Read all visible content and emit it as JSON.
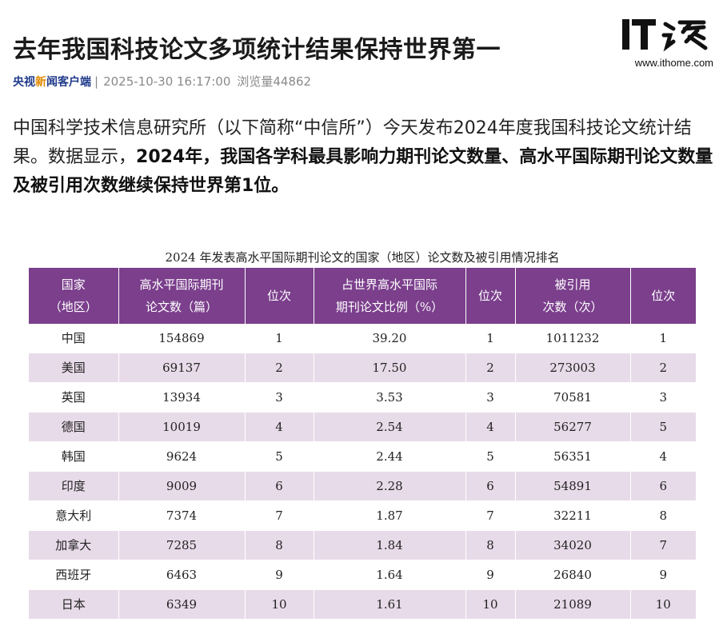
{
  "article": {
    "title": "去年我国科技论文多项统计结果保持世界第一",
    "logo_text": "IT之家",
    "logo_url": "www.ithome.com",
    "source_part1": "央视",
    "source_accent": "新",
    "source_part2": "闻客户端",
    "separator": "|",
    "date": "2025-10-30 16:17:00",
    "views": "浏览量44862",
    "lead_normal": "中国科学技术信息研究所（以下简称“中信所”）今天发布2024年度我国科技论文统计结果。数据显示，",
    "lead_bold": "2024年，我国各学科最具影响力期刊论文数量、高水平国际期刊论文数量及被引用次数继续保持世界第1位。"
  },
  "table": {
    "caption": "2024 年发表高水平国际期刊论文的国家（地区）论文数及被引用情况排名",
    "headers": [
      [
        "国家",
        "（地区）"
      ],
      [
        "高水平国际期刊",
        "论文数（篇）"
      ],
      [
        "位次"
      ],
      [
        "占世界高水平国际",
        "期刊论文比例（%）"
      ],
      [
        "位次"
      ],
      [
        "被引用",
        "次数（次）"
      ],
      [
        "位次"
      ]
    ],
    "rows": [
      [
        "中国",
        "154869",
        "1",
        "39.20",
        "1",
        "1011232",
        "1"
      ],
      [
        "美国",
        "69137",
        "2",
        "17.50",
        "2",
        "273003",
        "2"
      ],
      [
        "英国",
        "13934",
        "3",
        "3.53",
        "3",
        "70581",
        "3"
      ],
      [
        "德国",
        "10019",
        "4",
        "2.54",
        "4",
        "56277",
        "5"
      ],
      [
        "韩国",
        "9624",
        "5",
        "2.44",
        "5",
        "56351",
        "4"
      ],
      [
        "印度",
        "9009",
        "6",
        "2.28",
        "6",
        "54891",
        "6"
      ],
      [
        "意大利",
        "7374",
        "7",
        "1.87",
        "7",
        "32211",
        "8"
      ],
      [
        "加拿大",
        "7285",
        "8",
        "1.84",
        "8",
        "34020",
        "7"
      ],
      [
        "西班牙",
        "6463",
        "9",
        "1.64",
        "9",
        "26840",
        "9"
      ],
      [
        "日本",
        "6349",
        "10",
        "1.61",
        "10",
        "21089",
        "10"
      ]
    ]
  },
  "colors": {
    "header_bg": "#7b3f8c",
    "stripe_bg": "#e8dbe9",
    "source_blue": "#1f3a8a",
    "source_orange": "#e08a00"
  }
}
